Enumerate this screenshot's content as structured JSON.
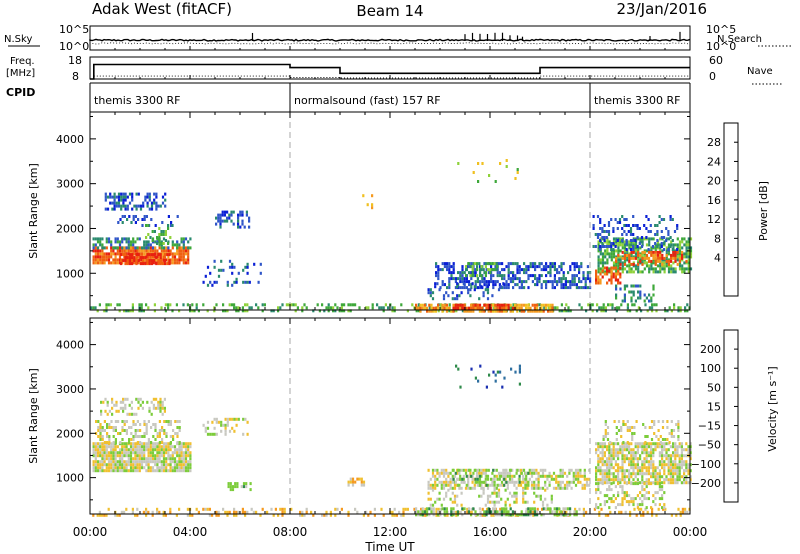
{
  "header": {
    "station": "Adak West (fitACF)",
    "beam": "Beam 14",
    "date": "23/Jan/2016"
  },
  "top_panels": {
    "nsky_label": "N.Sky",
    "nsky_ticks": [
      "10^5",
      "10^0"
    ],
    "nsearch_label": "N.Search",
    "nsearch_ticks": [
      "10^5",
      "10^0"
    ],
    "freq_label": "Freq.",
    "freq_unit": "[MHz]",
    "freq_ticks": [
      "18",
      "8"
    ],
    "nave_label": "Nave",
    "nave_ticks": [
      "60",
      "0"
    ],
    "cpid_label": "CPID",
    "cpid_segments": [
      {
        "label": "themis 3300 RF",
        "start": 0,
        "end": 8
      },
      {
        "label": "normalsound (fast) 157 RF",
        "start": 8,
        "end": 20
      },
      {
        "label": "themis 3300 RF",
        "start": 20,
        "end": 24
      }
    ],
    "freq_profile": [
      {
        "start": 0,
        "end": 0.15,
        "mhz": 8
      },
      {
        "start": 0.15,
        "end": 8,
        "mhz": 14.6
      },
      {
        "start": 8,
        "end": 10,
        "mhz": 13.2
      },
      {
        "start": 10,
        "end": 18,
        "mhz": 10.6
      },
      {
        "start": 18,
        "end": 24,
        "mhz": 13.2
      }
    ]
  },
  "chart_data": [
    {
      "type": "heatmap",
      "quantity": "Power",
      "ylabel": "Slant Range [km]",
      "ylim": [
        180,
        4600
      ],
      "yticks": [
        "4000",
        "3000",
        "2000",
        "1000"
      ],
      "xlim": [
        0,
        24
      ],
      "colorbar": {
        "label": "Power [dB]",
        "ticks": [
          "28",
          "24",
          "20",
          "16",
          "12",
          "8",
          "4"
        ],
        "colors": [
          "#0a1fd6",
          "#2f55c8",
          "#2a8a6e",
          "#3ea83a",
          "#8fd23a",
          "#f0c020",
          "#f59a20",
          "#f06010",
          "#e82010"
        ]
      },
      "regions": [
        {
          "t0": 0.1,
          "t1": 3.9,
          "r0": 1200,
          "r1": 1600,
          "level": 7,
          "density": 0.9
        },
        {
          "t0": 1.2,
          "t1": 3.2,
          "r0": 1200,
          "r1": 1450,
          "level": 8,
          "density": 0.7
        },
        {
          "t0": 0.1,
          "t1": 4.0,
          "r0": 1550,
          "r1": 1800,
          "level": 2,
          "density": 0.55
        },
        {
          "t0": 0.5,
          "t1": 3.0,
          "r0": 2450,
          "r1": 2800,
          "level": 1,
          "density": 0.45
        },
        {
          "t0": 1.0,
          "t1": 3.5,
          "r0": 2050,
          "r1": 2300,
          "level": 1,
          "density": 0.25
        },
        {
          "t0": 2.2,
          "t1": 3.4,
          "r0": 1650,
          "r1": 2100,
          "level": 3,
          "density": 0.3
        },
        {
          "t0": 5.0,
          "t1": 6.4,
          "r0": 2050,
          "r1": 2400,
          "level": 1,
          "density": 0.4
        },
        {
          "t0": 4.5,
          "t1": 6.8,
          "r0": 700,
          "r1": 1300,
          "level": 1,
          "density": 0.15
        },
        {
          "t0": 0.0,
          "t1": 24.0,
          "r0": 180,
          "r1": 330,
          "level": 3,
          "density": 0.35
        },
        {
          "t0": 13.0,
          "t1": 18.5,
          "r0": 180,
          "r1": 320,
          "level": 6,
          "density": 0.7
        },
        {
          "t0": 14.5,
          "t1": 17.0,
          "r0": 230,
          "r1": 320,
          "level": 8,
          "density": 0.6
        },
        {
          "t0": 13.8,
          "t1": 20.0,
          "r0": 700,
          "r1": 1250,
          "level": 1,
          "density": 0.55
        },
        {
          "t0": 15.0,
          "t1": 16.3,
          "r0": 950,
          "r1": 1250,
          "level": 3,
          "density": 0.5
        },
        {
          "t0": 13.5,
          "t1": 16.5,
          "r0": 400,
          "r1": 800,
          "level": 1,
          "density": 0.2
        },
        {
          "t0": 20.3,
          "t1": 24.0,
          "r0": 1000,
          "r1": 1800,
          "level": 3,
          "density": 0.65
        },
        {
          "t0": 21.0,
          "t1": 23.9,
          "r0": 1200,
          "r1": 1500,
          "level": 7,
          "density": 0.5
        },
        {
          "t0": 20.2,
          "t1": 21.2,
          "r0": 750,
          "r1": 1150,
          "level": 7,
          "density": 0.6
        },
        {
          "t0": 20.1,
          "t1": 23.5,
          "r0": 1500,
          "r1": 2300,
          "level": 1,
          "density": 0.25
        },
        {
          "t0": 21.0,
          "t1": 22.5,
          "r0": 350,
          "r1": 750,
          "level": 2,
          "density": 0.3
        },
        {
          "t0": 14.6,
          "t1": 17.2,
          "r0": 3050,
          "r1": 3550,
          "level": 4,
          "density": 0.08
        },
        {
          "t0": 10.8,
          "t1": 11.4,
          "r0": 2300,
          "r1": 2900,
          "level": 5,
          "density": 0.08
        }
      ]
    },
    {
      "type": "heatmap",
      "quantity": "Velocity",
      "ylabel": "Slant Range [km]",
      "ylim": [
        180,
        4600
      ],
      "yticks": [
        "4000",
        "3000",
        "2000",
        "1000"
      ],
      "xlim": [
        0,
        24
      ],
      "colorbar": {
        "label": "Velocity [m s⁻¹]",
        "ticks": [
          "200",
          "100",
          "50",
          "15",
          "−15",
          "−50",
          "−100",
          "−200"
        ],
        "colors": [
          "#1a2fb0",
          "#2e6fa0",
          "#2e8a4a",
          "#7ccc3a",
          "#c8c8c0",
          "#f0c030",
          "#f59a20",
          "#f06018",
          "#e01010"
        ]
      },
      "regions": [
        {
          "t0": 0.1,
          "t1": 4.0,
          "r0": 1150,
          "r1": 1800,
          "level": 4,
          "density": 0.9
        },
        {
          "t0": 0.2,
          "t1": 3.6,
          "r0": 1800,
          "r1": 2300,
          "level": 4,
          "density": 0.4
        },
        {
          "t0": 0.4,
          "t1": 3.0,
          "r0": 2400,
          "r1": 2800,
          "level": 4,
          "density": 0.4
        },
        {
          "t0": 4.5,
          "t1": 6.3,
          "r0": 2000,
          "r1": 2350,
          "level": 4,
          "density": 0.35
        },
        {
          "t0": 5.5,
          "t1": 6.5,
          "r0": 700,
          "r1": 900,
          "level": 3,
          "density": 0.5
        },
        {
          "t0": 0.0,
          "t1": 24.0,
          "r0": 180,
          "r1": 320,
          "level": 5,
          "density": 0.3
        },
        {
          "t0": 13.0,
          "t1": 19.5,
          "r0": 180,
          "r1": 330,
          "level": 3,
          "density": 0.55
        },
        {
          "t0": 13.5,
          "t1": 20.0,
          "r0": 750,
          "r1": 1200,
          "level": 4,
          "density": 0.6
        },
        {
          "t0": 14.5,
          "t1": 17.5,
          "r0": 800,
          "r1": 1200,
          "level": 3,
          "density": 0.3
        },
        {
          "t0": 13.5,
          "t1": 18.5,
          "r0": 350,
          "r1": 750,
          "level": 4,
          "density": 0.25
        },
        {
          "t0": 20.2,
          "t1": 24.0,
          "r0": 900,
          "r1": 1800,
          "level": 4,
          "density": 0.75
        },
        {
          "t0": 20.2,
          "t1": 23.0,
          "r0": 350,
          "r1": 900,
          "level": 4,
          "density": 0.35
        },
        {
          "t0": 20.5,
          "t1": 23.5,
          "r0": 1800,
          "r1": 2300,
          "level": 4,
          "density": 0.25
        },
        {
          "t0": 10.3,
          "t1": 11.0,
          "r0": 850,
          "r1": 1000,
          "level": 5,
          "density": 0.6
        },
        {
          "t0": 14.6,
          "t1": 17.2,
          "r0": 3050,
          "r1": 3550,
          "level": 1,
          "density": 0.08
        }
      ]
    }
  ],
  "x_axis": {
    "label": "Time UT",
    "ticks": [
      "00:00",
      "04:00",
      "08:00",
      "12:00",
      "16:00",
      "20:00",
      "00:00"
    ]
  }
}
